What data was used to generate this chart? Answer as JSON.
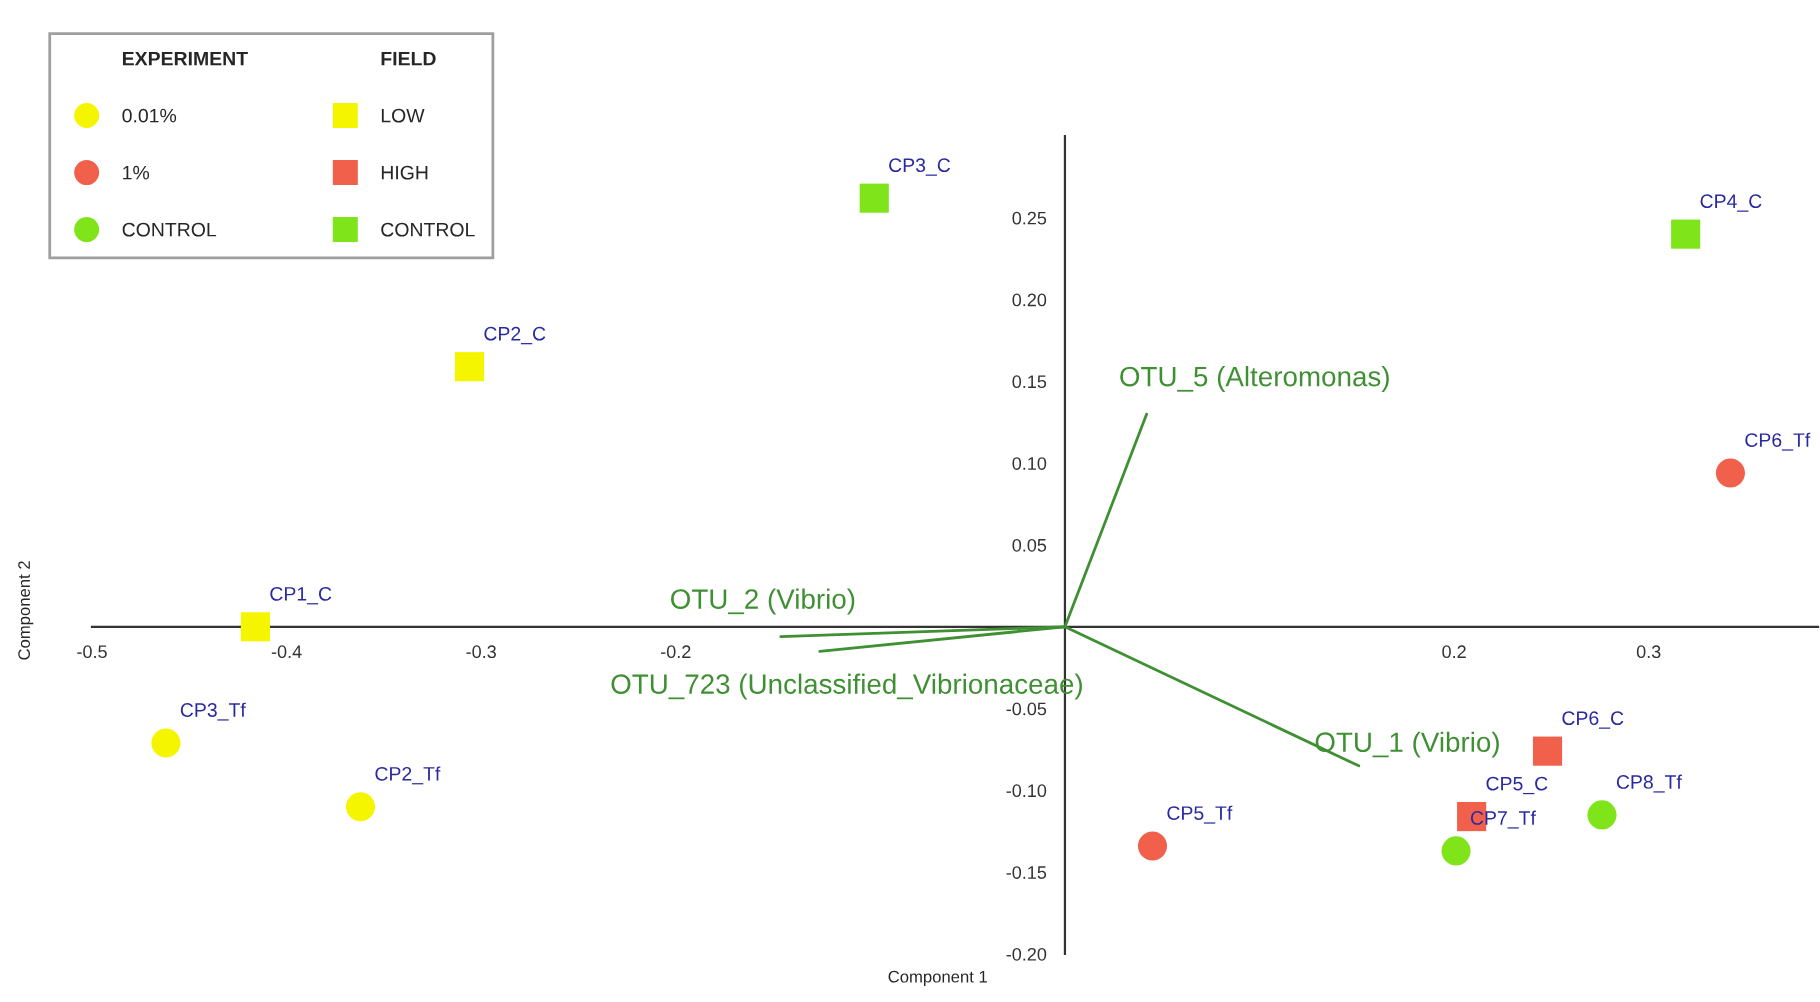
{
  "chart_data": {
    "type": "scatter",
    "xlabel": "Component 1",
    "ylabel": "Component 2",
    "xlim": [
      -0.5,
      0.387
    ],
    "ylim": [
      -0.2,
      0.3
    ],
    "xticks": [
      -0.5,
      -0.4,
      -0.3,
      -0.2,
      0.2,
      0.3
    ],
    "yticks": [
      {
        "value": -0.2,
        "label": "-0.20"
      },
      {
        "value": -0.15,
        "label": "-0.15"
      },
      {
        "value": -0.1,
        "label": "-0.10"
      },
      {
        "value": -0.05,
        "label": "-0.05"
      },
      {
        "value": 0.05,
        "label": "0.05"
      },
      {
        "value": 0.1,
        "label": "0.10"
      },
      {
        "value": 0.15,
        "label": "0.15"
      },
      {
        "value": 0.2,
        "label": "0.20"
      },
      {
        "value": 0.25,
        "label": "0.25"
      }
    ],
    "grid": false,
    "legend": "top left",
    "series": [
      {
        "name": "0.01%",
        "marker": "circle",
        "color": "#f5f500",
        "x": [
          -0.462,
          -0.362
        ],
        "values": [
          -0.071,
          -0.11
        ]
      },
      {
        "name": "1%",
        "marker": "circle",
        "color": "#f0604a",
        "x": [
          0.342,
          0.045
        ],
        "values": [
          0.094,
          -0.134
        ]
      },
      {
        "name": "CONTROL",
        "marker": "circle",
        "color": "#7fe51a",
        "x": [
          0.276,
          0.201
        ],
        "values": [
          -0.115,
          -0.137
        ]
      },
      {
        "name": "LOW",
        "marker": "square",
        "color": "#f5f500",
        "x": [
          -0.416,
          -0.306
        ],
        "values": [
          0.0,
          0.159
        ]
      },
      {
        "name": "HIGH",
        "marker": "square",
        "color": "#f0604a",
        "x": [
          0.248,
          0.209
        ],
        "values": [
          -0.076,
          -0.116
        ]
      },
      {
        "name": "CONTROL",
        "marker": "square",
        "color": "#7fe51a",
        "x": [
          -0.098,
          0.319
        ],
        "values": [
          0.262,
          0.24
        ]
      },
      {
        "name": "OTU_5 (Alteromonas)",
        "type": "line",
        "color": "#3f8f33",
        "x": [
          0,
          0.042
        ],
        "values": [
          0,
          0.13
        ]
      },
      {
        "name": "OTU_2 (Vibrio)",
        "type": "line",
        "color": "#3f8f33",
        "x": [
          0,
          -0.146
        ],
        "values": [
          0,
          -0.006
        ]
      },
      {
        "name": "OTU_723 (Unclassified_Vibrionaceae)",
        "type": "line",
        "color": "#3f8f33",
        "x": [
          0,
          -0.126
        ],
        "values": [
          0,
          -0.015
        ]
      },
      {
        "name": "OTU_1 (Vibrio)",
        "type": "line",
        "color": "#3f8f33",
        "x": [
          0,
          0.151
        ],
        "values": [
          0,
          -0.085
        ]
      }
    ],
    "annotations": [
      "EXPERIMENT",
      "FIELD",
      {
        "text": "CP3_Tf",
        "x": -0.462,
        "y": -0.071
      },
      {
        "text": "CP2_Tf",
        "x": -0.362,
        "y": -0.11
      },
      {
        "text": "CP6_Tf",
        "x": 0.342,
        "y": 0.094
      },
      {
        "text": "CP5_Tf",
        "x": 0.045,
        "y": -0.134
      },
      {
        "text": "CP8_Tf",
        "x": 0.276,
        "y": -0.115
      },
      {
        "text": "CP7_Tf",
        "x": 0.201,
        "y": -0.137
      },
      {
        "text": "CP1_C",
        "x": -0.416,
        "y": 0.0
      },
      {
        "text": "CP2_C",
        "x": -0.306,
        "y": 0.159
      },
      {
        "text": "CP6_C",
        "x": 0.248,
        "y": -0.076
      },
      {
        "text": "CP5_C",
        "x": 0.209,
        "y": -0.116
      },
      {
        "text": "CP3_C",
        "x": -0.098,
        "y": 0.262
      },
      {
        "text": "CP4_C",
        "x": 0.319,
        "y": 0.24
      }
    ]
  }
}
